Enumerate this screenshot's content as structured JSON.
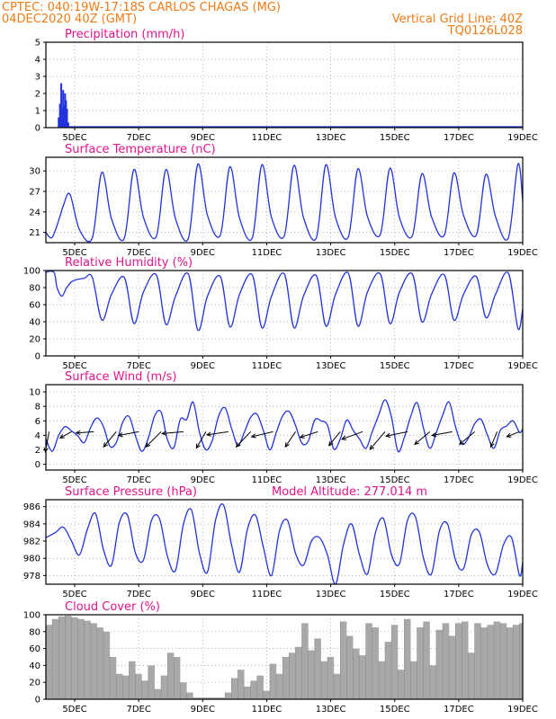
{
  "header": {
    "line1_left": "CPTEC:  040:19W-17:18S  CARLOS CHAGAS (MG)",
    "line2_left": "04DEC2020 40Z (GMT)",
    "line2_right": "Vertical Grid Line: 40Z",
    "line3_right": "TQ0126L028"
  },
  "colors": {
    "series": "#2233dd",
    "bars": "#2233dd",
    "cloud": "#a8a8a8",
    "header_text": "#f07a14",
    "title_text": "#e0148c",
    "wind_arrows": "#000000"
  },
  "x_axis": {
    "labels": [
      "5DEC",
      "7DEC",
      "9DEC",
      "11DEC",
      "13DEC",
      "15DEC",
      "17DEC",
      "19DEC"
    ],
    "label_days": [
      5,
      7,
      9,
      11,
      13,
      15,
      17,
      19
    ],
    "range_days": [
      4.1,
      19.0
    ]
  },
  "chart_data": [
    {
      "type": "bar",
      "title": "Precipitation (mm/h)",
      "ylim": [
        0,
        5
      ],
      "yticks": [
        0,
        1,
        2,
        3,
        4,
        5
      ],
      "x": [
        4.5,
        4.54,
        4.58,
        4.61,
        4.64,
        4.67,
        4.7,
        4.73,
        4.76,
        4.8
      ],
      "values": [
        0.6,
        1.4,
        2.6,
        1.1,
        2.2,
        1.3,
        2.0,
        1.6,
        1.1,
        0.3
      ]
    },
    {
      "type": "line",
      "title": "Surface Temperature (nC)",
      "ylim": [
        19.5,
        32
      ],
      "yticks": [
        21,
        24,
        27,
        30
      ],
      "x": [
        4.1,
        4.3,
        4.55,
        4.65,
        4.85,
        5.15,
        5.55,
        5.85,
        6.15,
        6.55,
        6.85,
        7.15,
        7.55,
        7.85,
        8.15,
        8.55,
        8.85,
        9.15,
        9.55,
        9.85,
        10.15,
        10.55,
        10.85,
        11.15,
        11.55,
        11.85,
        12.15,
        12.55,
        12.85,
        13.15,
        13.55,
        13.85,
        14.15,
        14.55,
        14.85,
        15.15,
        15.55,
        15.85,
        16.15,
        16.55,
        16.85,
        17.15,
        17.55,
        17.85,
        18.15,
        18.55,
        18.85,
        19.0
      ],
      "values": [
        21.0,
        20.3,
        23.5,
        25.0,
        26.6,
        21.4,
        20.2,
        29.8,
        23.0,
        20.1,
        30.2,
        23.2,
        20.4,
        30.2,
        23.0,
        20.1,
        31.0,
        23.5,
        20.6,
        30.6,
        23.1,
        20.2,
        30.9,
        23.2,
        20.5,
        30.8,
        23.2,
        20.2,
        30.9,
        23.2,
        20.3,
        30.3,
        23.3,
        20.7,
        30.4,
        23.1,
        20.5,
        29.6,
        23.3,
        20.6,
        29.7,
        23.5,
        20.6,
        29.5,
        23.3,
        20.2,
        31.0,
        25.6
      ]
    },
    {
      "type": "line",
      "title": "Relative Humidity (%)",
      "ylim": [
        0,
        100
      ],
      "yticks": [
        0,
        20,
        40,
        60,
        80,
        100
      ],
      "x": [
        4.1,
        4.35,
        4.45,
        4.6,
        4.75,
        4.95,
        5.3,
        5.55,
        5.85,
        6.15,
        6.55,
        6.85,
        7.15,
        7.55,
        7.85,
        8.15,
        8.55,
        8.85,
        9.15,
        9.55,
        9.85,
        10.15,
        10.55,
        10.85,
        11.15,
        11.55,
        11.85,
        12.15,
        12.55,
        12.85,
        13.15,
        13.55,
        13.85,
        14.15,
        14.55,
        14.85,
        15.15,
        15.55,
        15.85,
        16.15,
        16.55,
        16.85,
        17.15,
        17.55,
        17.85,
        18.15,
        18.55,
        18.85,
        19.0
      ],
      "values": [
        98,
        98,
        80,
        70,
        80,
        88,
        91,
        92,
        42,
        72,
        92,
        38,
        75,
        95,
        37,
        70,
        96,
        30,
        70,
        93,
        34,
        72,
        95,
        33,
        70,
        96,
        33,
        70,
        94,
        35,
        72,
        97,
        35,
        75,
        96,
        38,
        75,
        96,
        40,
        72,
        95,
        42,
        72,
        93,
        45,
        72,
        97,
        32,
        55
      ]
    },
    {
      "type": "line",
      "title": "Surface Wind (m/s)",
      "ylim": [
        -0.8,
        11
      ],
      "yticks": [
        0,
        2,
        4,
        6,
        8,
        10
      ],
      "x": [
        4.1,
        4.3,
        4.5,
        4.7,
        4.9,
        5.1,
        5.3,
        5.5,
        5.7,
        5.9,
        6.1,
        6.3,
        6.5,
        6.7,
        6.9,
        7.1,
        7.3,
        7.5,
        7.7,
        7.9,
        8.1,
        8.3,
        8.5,
        8.7,
        8.9,
        9.1,
        9.3,
        9.5,
        9.7,
        9.9,
        10.1,
        10.3,
        10.5,
        10.7,
        10.9,
        11.1,
        11.3,
        11.5,
        11.7,
        11.9,
        12.1,
        12.3,
        12.5,
        12.7,
        12.9,
        13.1,
        13.3,
        13.5,
        13.7,
        13.9,
        14.1,
        14.3,
        14.5,
        14.7,
        14.9,
        15.1,
        15.3,
        15.5,
        15.7,
        15.9,
        16.1,
        16.3,
        16.5,
        16.7,
        16.9,
        17.1,
        17.3,
        17.5,
        17.7,
        17.9,
        18.1,
        18.3,
        18.5,
        18.7,
        18.9,
        19.0
      ],
      "values": [
        3.5,
        1.8,
        4.0,
        5.2,
        4.6,
        3.9,
        3.0,
        5.1,
        6.4,
        5.2,
        2.5,
        3.0,
        5.8,
        6.6,
        3.9,
        1.8,
        3.6,
        6.7,
        7.2,
        3.4,
        2.3,
        6.2,
        6.2,
        8.6,
        4.4,
        2.0,
        3.3,
        6.7,
        7.8,
        5.0,
        2.6,
        4.4,
        6.5,
        6.9,
        4.6,
        2.0,
        4.4,
        6.7,
        7.3,
        5.4,
        2.9,
        3.2,
        6.1,
        6.0,
        5.4,
        2.1,
        3.5,
        6.1,
        4.7,
        3.5,
        2.2,
        4.5,
        6.8,
        8.9,
        6.5,
        1.8,
        3.7,
        6.6,
        8.5,
        5.0,
        2.2,
        4.4,
        6.8,
        8.6,
        5.2,
        2.8,
        3.6,
        5.6,
        6.2,
        4.0,
        2.2,
        4.7,
        5.3,
        6.0,
        4.4,
        4.9
      ],
      "vectors": {
        "x": [
          4.2,
          4.9,
          5.6,
          6.3,
          7.0,
          7.7,
          8.4,
          9.1,
          9.8,
          10.5,
          11.2,
          11.9,
          12.6,
          13.3,
          14.0,
          14.7,
          15.4,
          16.1,
          16.8,
          17.5,
          18.2,
          18.9
        ],
        "u": [
          -0.6,
          -1.8,
          -2.8,
          -2.0,
          -3.2,
          -2.4,
          -3.4,
          -1.5,
          -3.4,
          -2.3,
          -3.4,
          -1.6,
          -2.8,
          -1.8,
          -3.3,
          -2.4,
          -3.4,
          -2.4,
          -3.2,
          -2.4,
          -1.0,
          -2.0
        ],
        "v": [
          -3.2,
          -1.0,
          -0.2,
          -2.4,
          -0.6,
          -2.4,
          -0.3,
          -2.6,
          -0.5,
          -2.4,
          -0.8,
          -2.4,
          -0.9,
          -2.2,
          -1.2,
          -2.8,
          -0.7,
          -2.0,
          -0.6,
          -2.0,
          -2.4,
          -0.8
        ]
      }
    },
    {
      "type": "line",
      "title": "Surface Pressure (hPa)",
      "annotation": "Model Altitude: 277.014 m",
      "ylim": [
        977,
        986.8
      ],
      "yticks": [
        978,
        980,
        982,
        984,
        986
      ],
      "x": [
        4.1,
        4.4,
        4.65,
        4.9,
        5.15,
        5.4,
        5.65,
        5.9,
        6.15,
        6.4,
        6.65,
        6.9,
        7.15,
        7.4,
        7.65,
        7.9,
        8.15,
        8.4,
        8.65,
        8.9,
        9.15,
        9.4,
        9.65,
        9.9,
        10.15,
        10.4,
        10.65,
        10.9,
        11.15,
        11.4,
        11.65,
        11.9,
        12.15,
        12.4,
        12.65,
        12.9,
        13.15,
        13.4,
        13.65,
        13.9,
        14.15,
        14.4,
        14.65,
        14.9,
        15.15,
        15.4,
        15.65,
        15.9,
        16.15,
        16.4,
        16.65,
        16.9,
        17.15,
        17.4,
        17.65,
        17.9,
        18.15,
        18.4,
        18.65,
        18.9,
        19.0
      ],
      "values": [
        982.4,
        983.0,
        983.6,
        982.0,
        980.4,
        983.4,
        985.2,
        981.0,
        979.2,
        984.2,
        985.0,
        980.6,
        979.8,
        984.4,
        984.6,
        980.2,
        978.6,
        984.0,
        985.6,
        980.6,
        978.4,
        984.4,
        986.2,
        981.6,
        978.4,
        983.4,
        985.0,
        981.2,
        978.0,
        983.2,
        984.4,
        980.6,
        979.2,
        982.0,
        982.4,
        980.4,
        977.0,
        981.6,
        984.0,
        980.4,
        978.2,
        983.0,
        984.6,
        980.4,
        979.4,
        984.4,
        984.8,
        980.0,
        978.2,
        983.2,
        984.0,
        979.8,
        978.8,
        982.8,
        983.0,
        979.2,
        978.2,
        981.6,
        982.4,
        978.0,
        979.6
      ]
    },
    {
      "type": "area",
      "title": "Cloud Cover (%)",
      "ylim": [
        0,
        100
      ],
      "yticks": [
        0,
        20,
        40,
        60,
        80,
        100
      ],
      "x": [
        4.1,
        4.3,
        4.5,
        4.7,
        4.9,
        5.1,
        5.3,
        5.5,
        5.7,
        5.9,
        6.1,
        6.3,
        6.5,
        6.7,
        6.9,
        7.1,
        7.3,
        7.5,
        7.7,
        7.9,
        8.1,
        8.3,
        8.5,
        8.7,
        8.9,
        9.1,
        9.3,
        9.5,
        9.7,
        9.9,
        10.1,
        10.3,
        10.5,
        10.7,
        10.9,
        11.1,
        11.3,
        11.5,
        11.7,
        11.9,
        12.1,
        12.3,
        12.5,
        12.7,
        12.9,
        13.1,
        13.3,
        13.5,
        13.7,
        13.9,
        14.1,
        14.3,
        14.5,
        14.7,
        14.9,
        15.1,
        15.3,
        15.5,
        15.7,
        15.9,
        16.1,
        16.3,
        16.5,
        16.7,
        16.9,
        17.1,
        17.3,
        17.5,
        17.7,
        17.9,
        18.1,
        18.3,
        18.5,
        18.7,
        18.9,
        19.0
      ],
      "values": [
        88,
        95,
        98,
        99,
        97,
        95,
        93,
        90,
        85,
        80,
        50,
        30,
        28,
        45,
        30,
        22,
        40,
        12,
        28,
        55,
        50,
        20,
        8,
        2,
        2,
        2,
        2,
        2,
        8,
        25,
        35,
        15,
        22,
        28,
        10,
        42,
        30,
        50,
        55,
        62,
        90,
        58,
        72,
        45,
        50,
        30,
        92,
        75,
        60,
        52,
        90,
        85,
        45,
        68,
        88,
        35,
        95,
        45,
        85,
        92,
        40,
        82,
        90,
        75,
        90,
        92,
        55,
        90,
        85,
        88,
        92,
        90,
        85,
        88,
        90,
        92
      ]
    }
  ]
}
